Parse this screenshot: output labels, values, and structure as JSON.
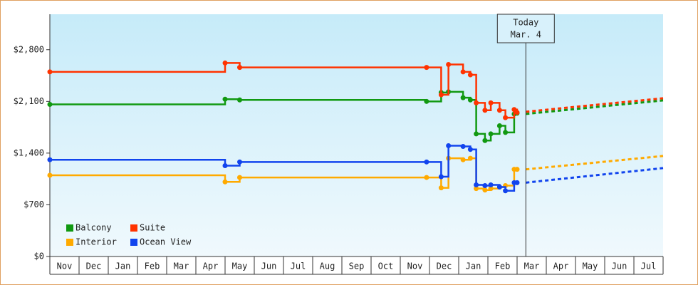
{
  "chart_data": {
    "type": "step-line",
    "months": [
      "Nov",
      "Dec",
      "Jan",
      "Feb",
      "Mar",
      "Apr",
      "May",
      "Jun",
      "Jul",
      "Aug",
      "Sep",
      "Oct",
      "Nov",
      "Dec",
      "Jan",
      "Feb",
      "Mar",
      "Apr",
      "May",
      "Jun",
      "Jul"
    ],
    "xlim": [
      0,
      21
    ],
    "ylim": [
      0,
      3280
    ],
    "yticks": [
      {
        "value": 0,
        "label": "$0"
      },
      {
        "value": 700,
        "label": "$700"
      },
      {
        "value": 1400,
        "label": "$1,400"
      },
      {
        "value": 2100,
        "label": "$2,100"
      },
      {
        "value": 2800,
        "label": "$2,800"
      }
    ],
    "annotation": {
      "lines": [
        "Today",
        "Mar. 4"
      ],
      "x": 16.3
    },
    "series": [
      {
        "name": "Balcony",
        "color": "#119911",
        "x": [
          0,
          6.0,
          6.5,
          12.9,
          13.4,
          13.65,
          14.15,
          14.4,
          14.6,
          14.9,
          15.1,
          15.4,
          15.6,
          15.9,
          16.0
        ],
        "values": [
          2060,
          2130,
          2120,
          2100,
          2220,
          2230,
          2150,
          2120,
          1660,
          1570,
          1660,
          1770,
          1680,
          1930,
          1940
        ],
        "projection": {
          "x": [
            16.3,
            21
          ],
          "values": [
            1930,
            2114
          ]
        }
      },
      {
        "name": "Suite",
        "color": "#ff3300",
        "x": [
          0,
          6.0,
          6.5,
          12.9,
          13.4,
          13.65,
          14.15,
          14.4,
          14.6,
          14.9,
          15.1,
          15.4,
          15.6,
          15.9,
          16.0
        ],
        "values": [
          2500,
          2620,
          2560,
          2560,
          2190,
          2600,
          2500,
          2460,
          2080,
          1980,
          2080,
          1980,
          1880,
          1990,
          1950
        ],
        "projection": {
          "x": [
            16.3,
            21
          ],
          "values": [
            1960,
            2143
          ]
        }
      },
      {
        "name": "Interior",
        "color": "#ffaa00",
        "x": [
          0,
          6.0,
          6.5,
          12.9,
          13.4,
          13.65,
          14.15,
          14.4,
          14.6,
          14.9,
          15.1,
          15.4,
          15.6,
          15.9,
          16.0
        ],
        "values": [
          1100,
          1010,
          1070,
          1070,
          930,
          1330,
          1310,
          1330,
          920,
          900,
          920,
          940,
          960,
          1180,
          1180
        ],
        "projection": {
          "x": [
            16.3,
            21
          ],
          "values": [
            1180,
            1361
          ]
        }
      },
      {
        "name": "Ocean View",
        "color": "#1144ee",
        "x": [
          0,
          6.0,
          6.5,
          12.9,
          13.4,
          13.65,
          14.15,
          14.4,
          14.6,
          14.9,
          15.1,
          15.4,
          15.6,
          15.9,
          16.0
        ],
        "values": [
          1310,
          1230,
          1280,
          1280,
          1080,
          1500,
          1490,
          1450,
          970,
          960,
          970,
          940,
          890,
          1000,
          1000
        ],
        "projection": {
          "x": [
            16.3,
            21
          ],
          "values": [
            1000,
            1197
          ]
        }
      }
    ]
  }
}
